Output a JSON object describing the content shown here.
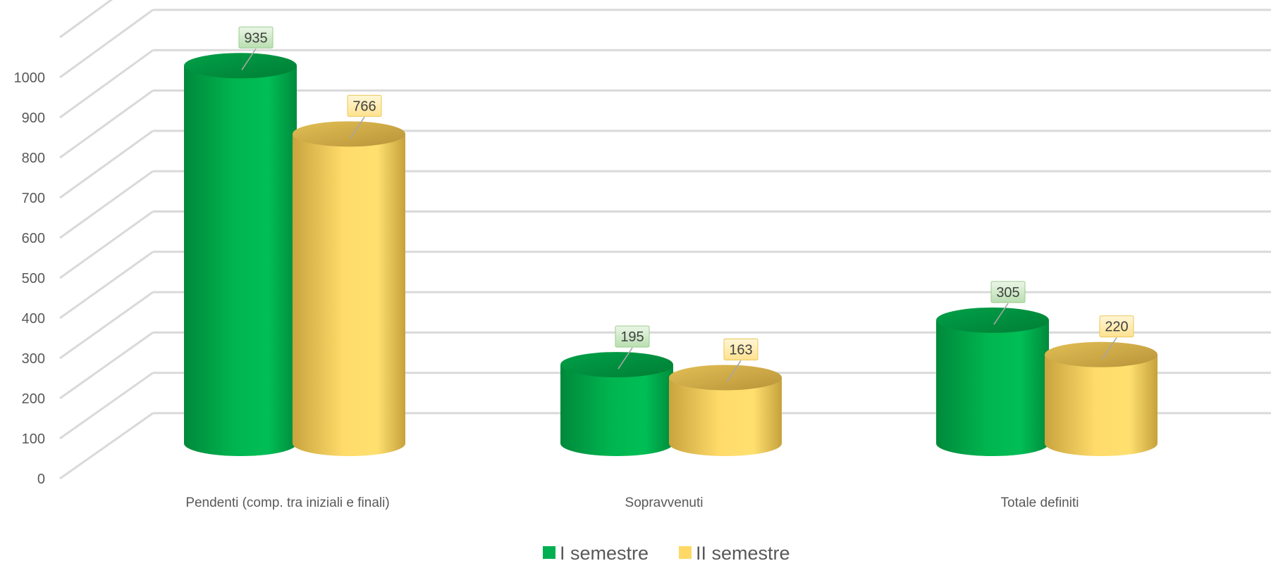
{
  "chart_data": {
    "type": "bar",
    "variant": "3d-cylinder",
    "title": "",
    "xlabel": "",
    "ylabel": "",
    "categories": [
      "Pendenti (comp. tra iniziali e finali)",
      "Sopravvenuti",
      "Totale definiti"
    ],
    "series": [
      {
        "name": "I semestre",
        "values": [
          935,
          195,
          305
        ],
        "color": "#00B050"
      },
      {
        "name": "II semestre",
        "values": [
          766,
          163,
          220
        ],
        "color": "#FFD966"
      }
    ],
    "ylim": [
      0,
      1000
    ],
    "yticks": [
      "0",
      "100",
      "200",
      "300",
      "400",
      "500",
      "600",
      "700",
      "800",
      "900",
      "1000"
    ],
    "grid": true,
    "legend": "bottom",
    "data_labels": true
  }
}
